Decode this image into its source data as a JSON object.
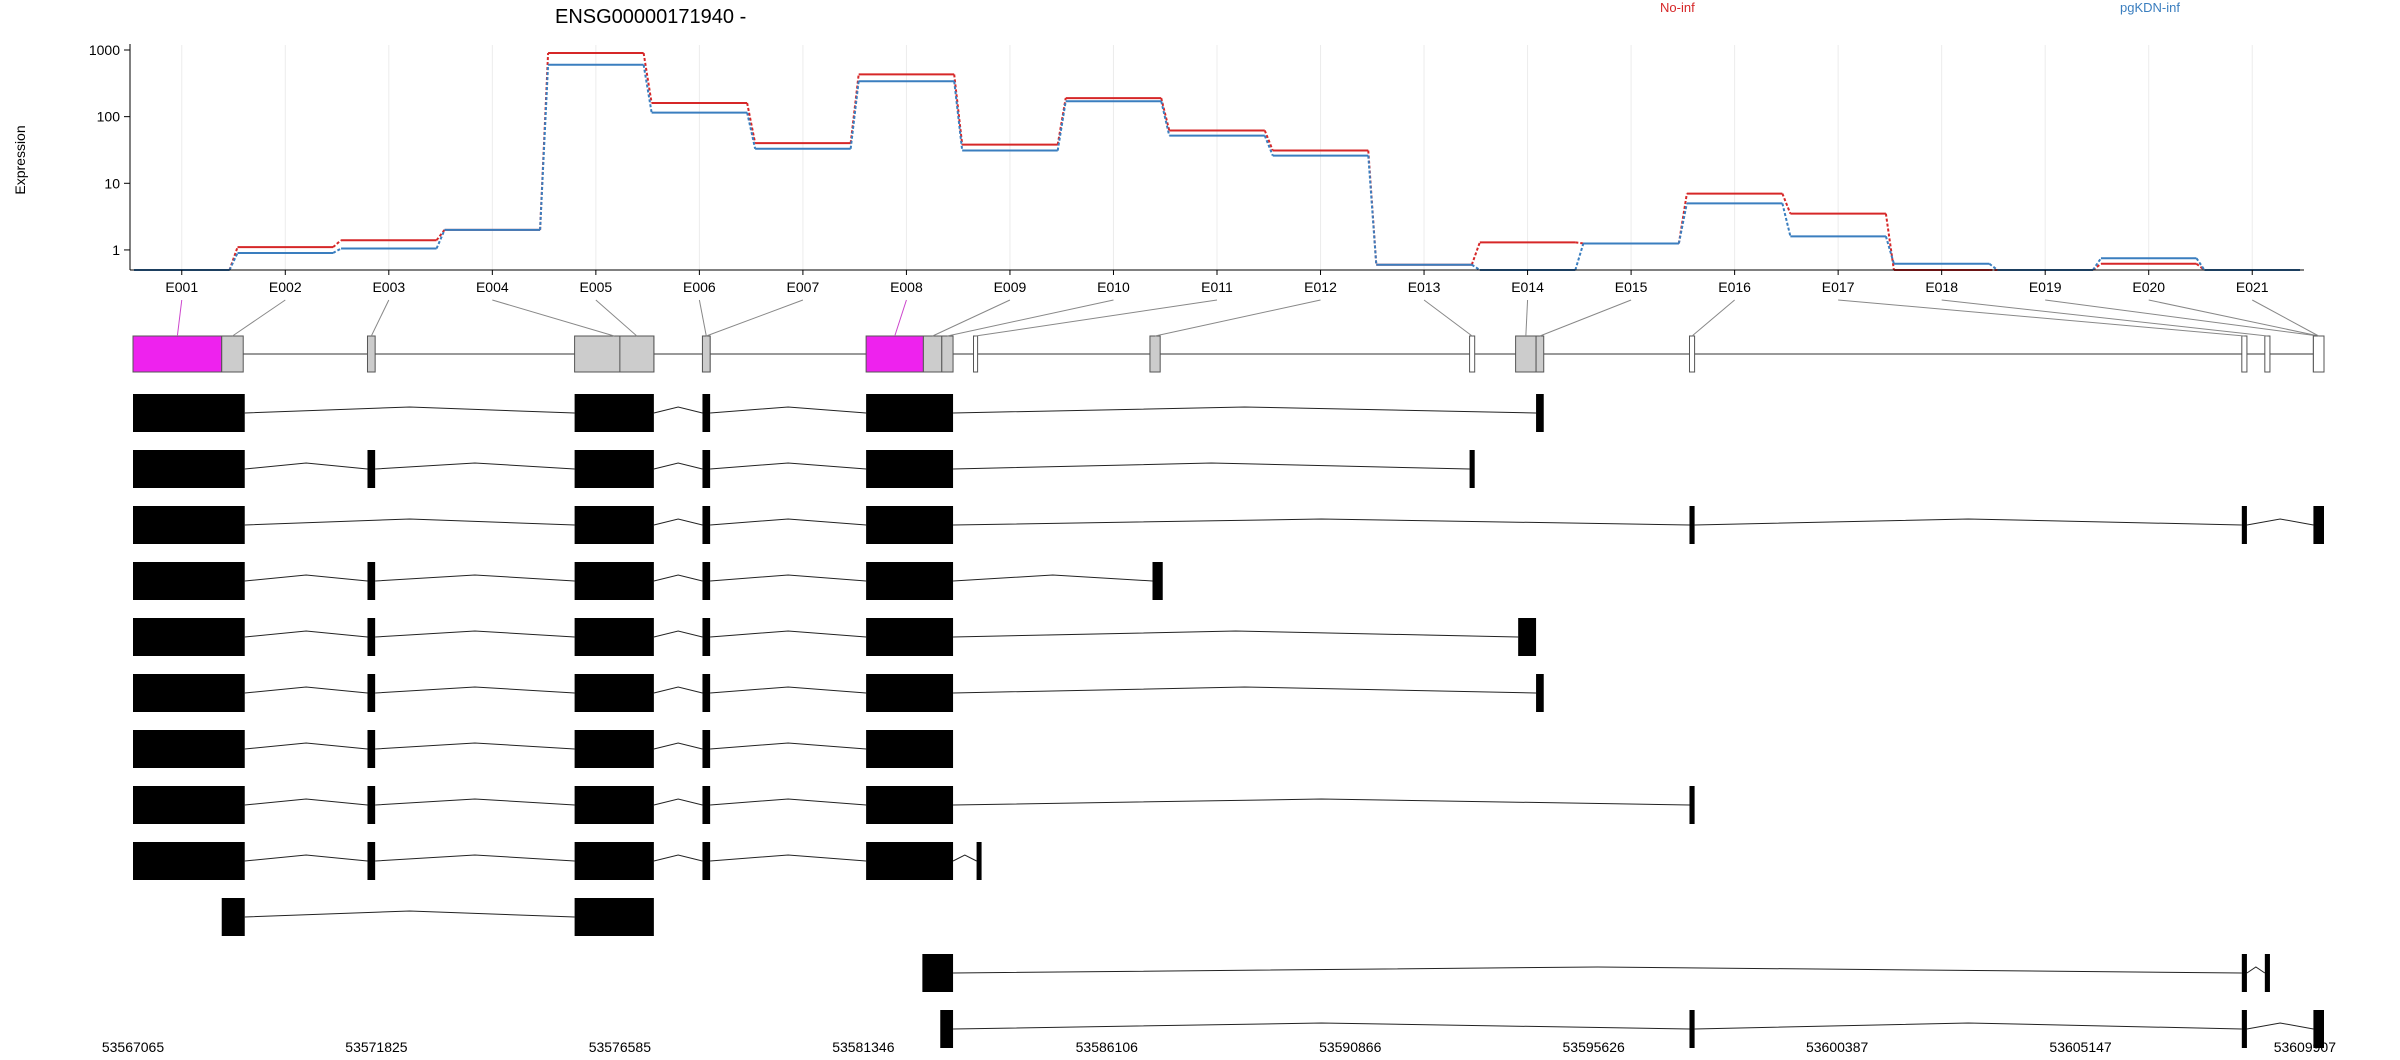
{
  "chart_data": {
    "type": "line",
    "title": "ENSG00000171940 -",
    "ylabel": "Expression",
    "y_scale": "log",
    "ylim": [
      0.5,
      1000
    ],
    "y_ticks": [
      {
        "value": 1,
        "label": "1"
      },
      {
        "value": 10,
        "label": "10"
      },
      {
        "value": 100,
        "label": "100"
      },
      {
        "value": 1000,
        "label": "1000"
      }
    ],
    "grid": "vertical, per exon bin",
    "legend_position": "top",
    "categories": [
      "E001",
      "E002",
      "E003",
      "E004",
      "E005",
      "E006",
      "E007",
      "E008",
      "E009",
      "E010",
      "E011",
      "E012",
      "E013",
      "E014",
      "E015",
      "E016",
      "E017",
      "E018",
      "E019",
      "E020",
      "E021"
    ],
    "series": [
      {
        "name": "No-inf",
        "color": "#d62728",
        "values": [
          0.5,
          1.1,
          1.4,
          2.0,
          900,
          160,
          40,
          430,
          38,
          190,
          62,
          31,
          0.6,
          1.3,
          1.25,
          7,
          3.5,
          0.5,
          0.5,
          0.62,
          0.5
        ]
      },
      {
        "name": "pgKDN-inf",
        "color": "#3a7ebf",
        "values": [
          0.5,
          0.9,
          1.05,
          2.0,
          600,
          115,
          33,
          340,
          31,
          170,
          52,
          26,
          0.6,
          0.5,
          1.25,
          5,
          1.6,
          0.62,
          0.5,
          0.75,
          0.5
        ]
      }
    ],
    "gene_model": {
      "exons": [
        {
          "id": "E001",
          "start": 53567065,
          "end": 53568800,
          "fill": "#ee22ee"
        },
        {
          "id": "E002",
          "start": 53568800,
          "end": 53569220,
          "fill": "#cccccc"
        },
        {
          "id": "E003",
          "start": 53571650,
          "end": 53571800,
          "fill": "#cccccc"
        },
        {
          "id": "E004",
          "start": 53575700,
          "end": 53577250,
          "fill": "#cccccc"
        },
        {
          "id": "E005",
          "start": 53576585,
          "end": 53577250,
          "fill": "#cccccc"
        },
        {
          "id": "E006",
          "start": 53578200,
          "end": 53578350,
          "fill": "#cccccc"
        },
        {
          "id": "E007",
          "start": 53578200,
          "end": 53578350,
          "fill": "#cccccc"
        },
        {
          "id": "E008",
          "start": 53581400,
          "end": 53582520,
          "fill": "#ee22ee"
        },
        {
          "id": "E009",
          "start": 53582520,
          "end": 53582880,
          "fill": "#cccccc"
        },
        {
          "id": "E010",
          "start": 53582880,
          "end": 53583100,
          "fill": "#cccccc"
        },
        {
          "id": "E011",
          "start": 53583500,
          "end": 53583580,
          "fill": "#ffffff"
        },
        {
          "id": "E012",
          "start": 53586950,
          "end": 53587150,
          "fill": "#cccccc"
        },
        {
          "id": "E013",
          "start": 53593200,
          "end": 53593300,
          "fill": "#ffffff"
        },
        {
          "id": "E014",
          "start": 53594100,
          "end": 53594500,
          "fill": "#cccccc"
        },
        {
          "id": "E015",
          "start": 53594500,
          "end": 53594650,
          "fill": "#cccccc"
        },
        {
          "id": "E016",
          "start": 53597500,
          "end": 53597600,
          "fill": "#ffffff"
        },
        {
          "id": "E017",
          "start": 53608300,
          "end": 53608400,
          "fill": "#ffffff"
        },
        {
          "id": "E018",
          "start": 53608750,
          "end": 53608850,
          "fill": "#ffffff"
        },
        {
          "id": "E019",
          "start": 53609700,
          "end": 53609907,
          "fill": "#ffffff"
        },
        {
          "id": "E020",
          "start": 53609700,
          "end": 53609907,
          "fill": "#ffffff"
        },
        {
          "id": "E021",
          "start": 53609700,
          "end": 53609907,
          "fill": "#ffffff"
        }
      ],
      "transcripts": [
        [
          [
            53567065,
            53569250
          ],
          [
            53575700,
            53577250
          ],
          [
            53578200,
            53578350
          ],
          [
            53581400,
            53583100
          ],
          [
            53594500,
            53594650
          ]
        ],
        [
          [
            53567065,
            53569250
          ],
          [
            53571650,
            53571800
          ],
          [
            53575700,
            53577250
          ],
          [
            53578200,
            53578350
          ],
          [
            53581400,
            53583100
          ],
          [
            53593200,
            53593300
          ]
        ],
        [
          [
            53567065,
            53569250
          ],
          [
            53575700,
            53577250
          ],
          [
            53578200,
            53578350
          ],
          [
            53581400,
            53583100
          ],
          [
            53597500,
            53597600
          ],
          [
            53608300,
            53608400
          ],
          [
            53609700,
            53609907
          ]
        ],
        [
          [
            53567065,
            53569250
          ],
          [
            53571650,
            53571800
          ],
          [
            53575700,
            53577250
          ],
          [
            53578200,
            53578350
          ],
          [
            53581400,
            53583100
          ],
          [
            53587000,
            53587200
          ]
        ],
        [
          [
            53567065,
            53569250
          ],
          [
            53571650,
            53571800
          ],
          [
            53575700,
            53577250
          ],
          [
            53578200,
            53578350
          ],
          [
            53581400,
            53583100
          ],
          [
            53594150,
            53594500
          ]
        ],
        [
          [
            53567065,
            53569250
          ],
          [
            53571650,
            53571800
          ],
          [
            53575700,
            53577250
          ],
          [
            53578200,
            53578350
          ],
          [
            53581400,
            53583100
          ],
          [
            53594500,
            53594650
          ]
        ],
        [
          [
            53567065,
            53569250
          ],
          [
            53571650,
            53571800
          ],
          [
            53575700,
            53577250
          ],
          [
            53578200,
            53578350
          ],
          [
            53581400,
            53583100
          ]
        ],
        [
          [
            53567065,
            53569250
          ],
          [
            53571650,
            53571800
          ],
          [
            53575700,
            53577250
          ],
          [
            53578200,
            53578350
          ],
          [
            53581400,
            53583100
          ],
          [
            53597500,
            53597600
          ]
        ],
        [
          [
            53567065,
            53569250
          ],
          [
            53571650,
            53571800
          ],
          [
            53575700,
            53577250
          ],
          [
            53578200,
            53578350
          ],
          [
            53581400,
            53583100
          ],
          [
            53583560,
            53583600
          ]
        ],
        [
          [
            53568800,
            53569250
          ],
          [
            53575700,
            53577250
          ]
        ],
        [
          [
            53582500,
            53583100
          ],
          [
            53608300,
            53608400
          ],
          [
            53608750,
            53608850
          ]
        ],
        [
          [
            53582850,
            53583100
          ],
          [
            53597500,
            53597600
          ],
          [
            53608300,
            53608400
          ],
          [
            53609700,
            53609907
          ]
        ]
      ]
    },
    "genomic_axis": {
      "range": [
        53567065,
        53609907
      ],
      "tick_labels": [
        "53567065",
        "53571825",
        "53576585",
        "53581346",
        "53586106",
        "53590866",
        "53595626",
        "53600387",
        "53605147",
        "53609907"
      ]
    }
  }
}
